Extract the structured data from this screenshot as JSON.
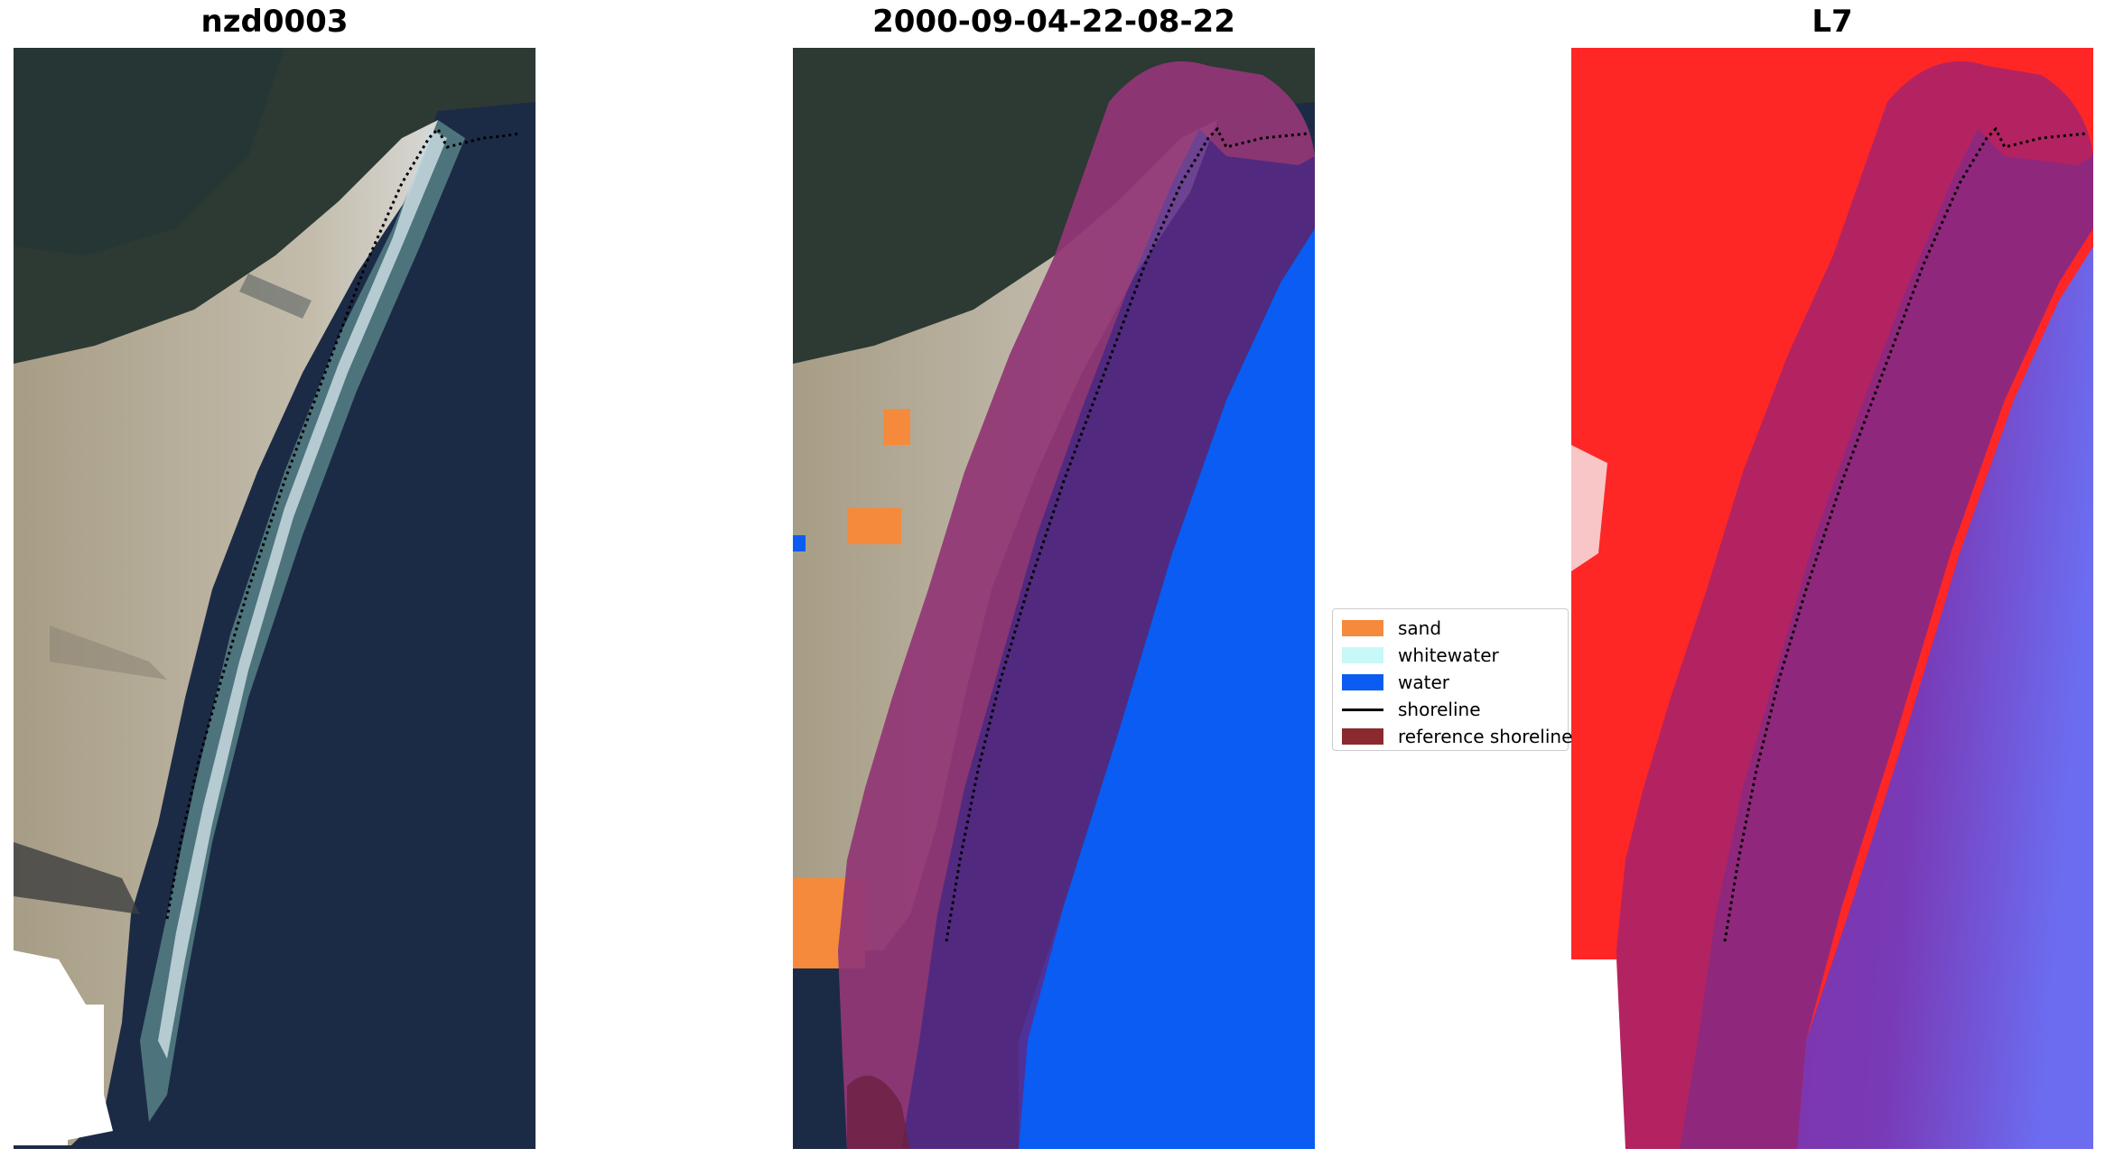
{
  "panels": [
    {
      "title": "nzd0003"
    },
    {
      "title": "2000-09-04-22-08-22"
    },
    {
      "title": "L7"
    }
  ],
  "legend": {
    "items": [
      {
        "label": "sand",
        "color": "#f58a3c",
        "kind": "patch"
      },
      {
        "label": "whitewater",
        "color": "#c8f8f8",
        "kind": "patch"
      },
      {
        "label": "water",
        "color": "#0a5cf2",
        "kind": "patch"
      },
      {
        "label": "shoreline",
        "color": "#000000",
        "kind": "line"
      },
      {
        "label": "reference shoreline",
        "color": "#8b2a2e",
        "kind": "patch"
      }
    ]
  },
  "colors": {
    "ocean": "#1b2c47",
    "land_sand": "#b7aa92",
    "vegetation": "#2e3d2c",
    "classified_water": "#0a5cf2",
    "classified_sand": "#f58a3c",
    "reference_buffer": "#8b2a4e",
    "index_land": "#ff2020",
    "index_water": "#2222ee"
  },
  "icons": [
    "satellite-rgb-image",
    "classified-image",
    "water-index-image"
  ]
}
